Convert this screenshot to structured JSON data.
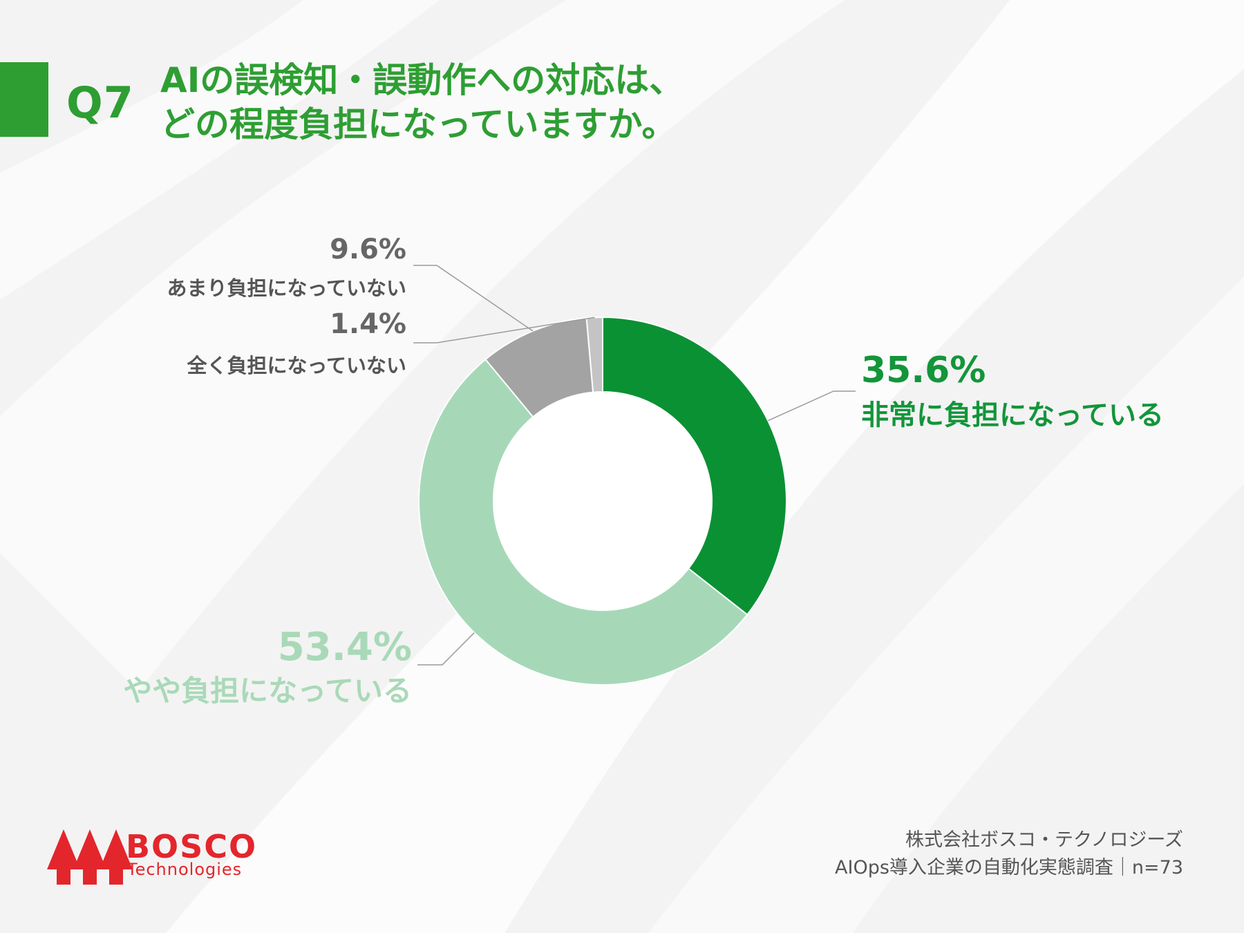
{
  "question": {
    "number": "Q7",
    "title_line1": "AIの誤検知・誤動作への対応は、",
    "title_line2": "どの程度負担になっていますか。"
  },
  "chart_data": {
    "type": "pie",
    "categories": [
      "非常に負担になっている",
      "やや負担になっている",
      "あまり負担になっていない",
      "全く負担になっていない"
    ],
    "values": [
      35.6,
      53.4,
      9.6,
      1.4
    ],
    "value_labels": [
      "35.6%",
      "53.4%",
      "9.6%",
      "1.4%"
    ],
    "colors": [
      "#0a9134",
      "#a6d8b8",
      "#a3a3a3",
      "#c4c4c4"
    ],
    "donut": true,
    "title": ""
  },
  "footer": {
    "company": "株式会社ボスコ・テクノロジーズ",
    "survey": "AIOps導入企業の自動化実態調査｜n=73"
  },
  "logo": {
    "line1": "BOSCO",
    "line2": "Technologies"
  }
}
